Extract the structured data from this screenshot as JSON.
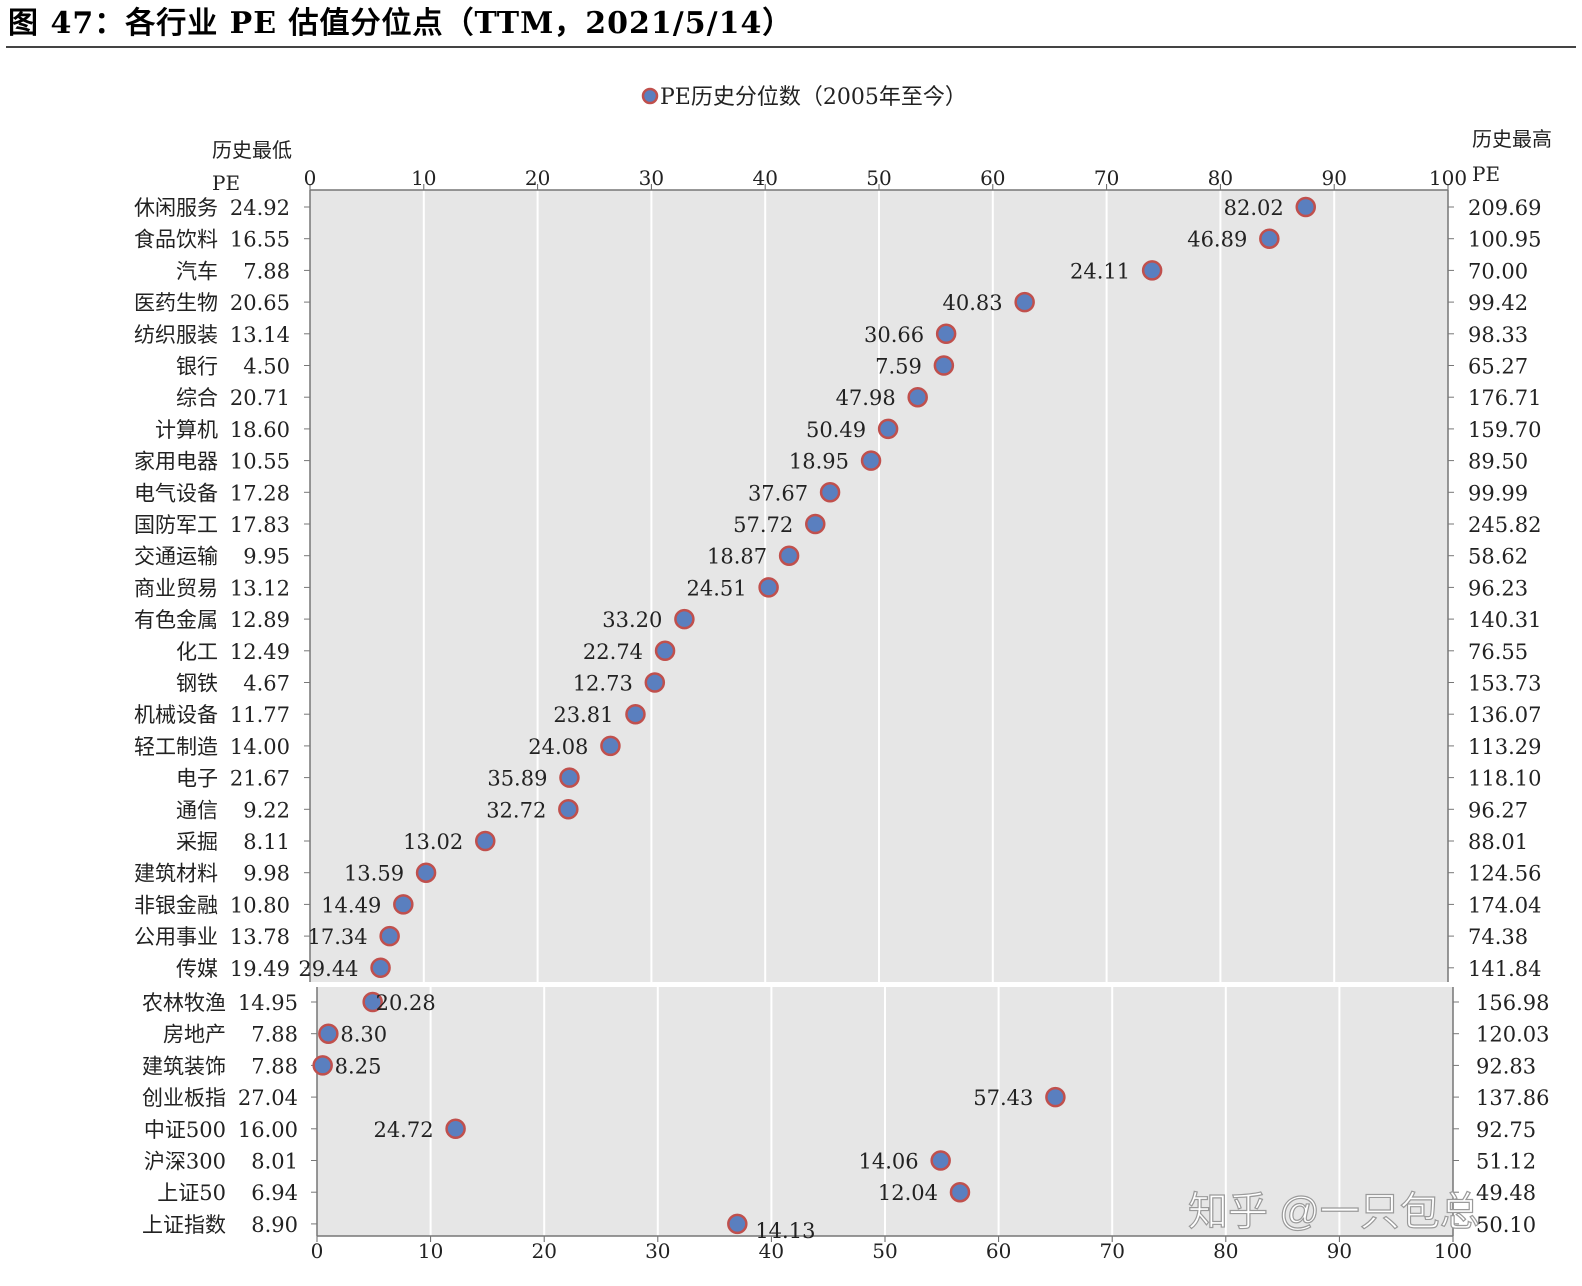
{
  "figure_title": "图 47：各行业 PE 估值分位点（TTM，2021/5/14）",
  "watermark": "知乎 @一只包总",
  "chart_data": {
    "type": "scatter",
    "title": "",
    "legend": {
      "label": "PE历史分位数（2005年至今）",
      "placement": "top-center"
    },
    "left_axis_title": "历史最低 PE",
    "right_axis_title": "历史最高 PE",
    "xlim": [
      0,
      100
    ],
    "x_ticks": [
      0,
      10,
      20,
      30,
      40,
      50,
      60,
      70,
      80,
      90,
      100
    ],
    "grid": true,
    "colors": {
      "marker_fill": "#5a7fbf",
      "marker_edge": "#c0504d",
      "plot_bg": "#e6e6e6"
    },
    "panels": [
      {
        "name": "industries",
        "rows": [
          {
            "category": "休闲服务",
            "hist_min_pe": "24.92",
            "percentile": 87.5,
            "current_pe": "82.02",
            "hist_max_pe": "209.69"
          },
          {
            "category": "食品饮料",
            "hist_min_pe": "16.55",
            "percentile": 84.3,
            "current_pe": "46.89",
            "hist_max_pe": "100.95"
          },
          {
            "category": "汽车",
            "hist_min_pe": "7.88",
            "percentile": 74.0,
            "current_pe": "24.11",
            "hist_max_pe": "70.00"
          },
          {
            "category": "医药生物",
            "hist_min_pe": "20.65",
            "percentile": 62.8,
            "current_pe": "40.83",
            "hist_max_pe": "99.42"
          },
          {
            "category": "纺织服装",
            "hist_min_pe": "13.14",
            "percentile": 55.9,
            "current_pe": "30.66",
            "hist_max_pe": "98.33"
          },
          {
            "category": "银行",
            "hist_min_pe": "4.50",
            "percentile": 55.7,
            "current_pe": "7.59",
            "hist_max_pe": "65.27"
          },
          {
            "category": "综合",
            "hist_min_pe": "20.71",
            "percentile": 53.4,
            "current_pe": "47.98",
            "hist_max_pe": "176.71"
          },
          {
            "category": "计算机",
            "hist_min_pe": "18.60",
            "percentile": 50.8,
            "current_pe": "50.49",
            "hist_max_pe": "159.70"
          },
          {
            "category": "家用电器",
            "hist_min_pe": "10.55",
            "percentile": 49.3,
            "current_pe": "18.95",
            "hist_max_pe": "89.50"
          },
          {
            "category": "电气设备",
            "hist_min_pe": "17.28",
            "percentile": 45.7,
            "current_pe": "37.67",
            "hist_max_pe": "99.99"
          },
          {
            "category": "国防军工",
            "hist_min_pe": "17.83",
            "percentile": 44.4,
            "current_pe": "57.72",
            "hist_max_pe": "245.82"
          },
          {
            "category": "交通运输",
            "hist_min_pe": "9.95",
            "percentile": 42.1,
            "current_pe": "18.87",
            "hist_max_pe": "58.62"
          },
          {
            "category": "商业贸易",
            "hist_min_pe": "13.12",
            "percentile": 40.3,
            "current_pe": "24.51",
            "hist_max_pe": "96.23"
          },
          {
            "category": "有色金属",
            "hist_min_pe": "12.89",
            "percentile": 32.9,
            "current_pe": "33.20",
            "hist_max_pe": "140.31"
          },
          {
            "category": "化工",
            "hist_min_pe": "12.49",
            "percentile": 31.2,
            "current_pe": "22.74",
            "hist_max_pe": "76.55"
          },
          {
            "category": "钢铁",
            "hist_min_pe": "4.67",
            "percentile": 30.3,
            "current_pe": "12.73",
            "hist_max_pe": "153.73"
          },
          {
            "category": "机械设备",
            "hist_min_pe": "11.77",
            "percentile": 28.6,
            "current_pe": "23.81",
            "hist_max_pe": "136.07"
          },
          {
            "category": "轻工制造",
            "hist_min_pe": "14.00",
            "percentile": 26.4,
            "current_pe": "24.08",
            "hist_max_pe": "113.29"
          },
          {
            "category": "电子",
            "hist_min_pe": "21.67",
            "percentile": 22.8,
            "current_pe": "35.89",
            "hist_max_pe": "118.10"
          },
          {
            "category": "通信",
            "hist_min_pe": "9.22",
            "percentile": 22.7,
            "current_pe": "32.72",
            "hist_max_pe": "96.27"
          },
          {
            "category": "采掘",
            "hist_min_pe": "8.11",
            "percentile": 15.4,
            "current_pe": "13.02",
            "hist_max_pe": "88.01"
          },
          {
            "category": "建筑材料",
            "hist_min_pe": "9.98",
            "percentile": 10.2,
            "current_pe": "13.59",
            "hist_max_pe": "124.56"
          },
          {
            "category": "非银金融",
            "hist_min_pe": "10.80",
            "percentile": 8.2,
            "current_pe": "14.49",
            "hist_max_pe": "174.04"
          },
          {
            "category": "公用事业",
            "hist_min_pe": "13.78",
            "percentile": 7.0,
            "current_pe": "17.34",
            "hist_max_pe": "74.38"
          },
          {
            "category": "传媒",
            "hist_min_pe": "19.49",
            "percentile": 6.2,
            "current_pe": "29.44",
            "hist_max_pe": "141.84"
          }
        ]
      },
      {
        "name": "indices",
        "rows": [
          {
            "category": "农林牧渔",
            "hist_min_pe": "14.95",
            "percentile": 4.9,
            "current_pe": "20.28",
            "hist_max_pe": "156.98"
          },
          {
            "category": "房地产",
            "hist_min_pe": "7.88",
            "percentile": 1.0,
            "current_pe": "8.30",
            "hist_max_pe": "120.03"
          },
          {
            "category": "建筑装饰",
            "hist_min_pe": "7.88",
            "percentile": 0.5,
            "current_pe": "8.25",
            "hist_max_pe": "92.83"
          },
          {
            "category": "创业板指",
            "hist_min_pe": "27.04",
            "percentile": 65.0,
            "current_pe": "57.43",
            "hist_max_pe": "137.86"
          },
          {
            "category": "中证500",
            "hist_min_pe": "16.00",
            "percentile": 12.2,
            "current_pe": "24.72",
            "hist_max_pe": "92.75"
          },
          {
            "category": "沪深300",
            "hist_min_pe": "8.01",
            "percentile": 54.9,
            "current_pe": "14.06",
            "hist_max_pe": "51.12"
          },
          {
            "category": "上证50",
            "hist_min_pe": "6.94",
            "percentile": 56.6,
            "current_pe": "12.04",
            "hist_max_pe": "49.48"
          },
          {
            "category": "上证指数",
            "hist_min_pe": "8.90",
            "percentile": 37.0,
            "current_pe": "14.13",
            "hist_max_pe": "50.10"
          }
        ]
      }
    ]
  }
}
